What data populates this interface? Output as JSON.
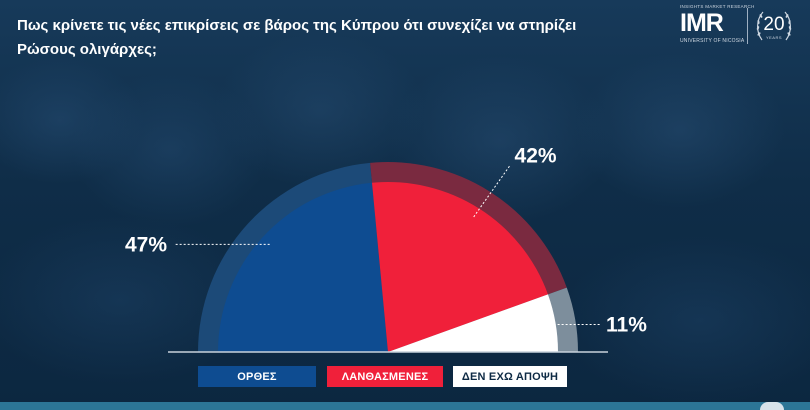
{
  "title": "Πως κρίνετε τις νέες επικρίσεις σε βάρος της Κύπρου ότι συνεχίζει να στηρίζει Ρώσους ολιγάρχες;",
  "logo": {
    "tagline": "INSIGHTS MARKET RESEARCH",
    "name": "IMR",
    "institution": "UNIVERSITY OF NICOSIA",
    "anniversary": "20",
    "anniversary_sub": "YEARS"
  },
  "legend": {
    "item1": "ΟΡΘΕΣ",
    "item2": "ΛΑΝΘΑΣΜΕΝΕΣ",
    "item3": "ΔΕΝ ΕΧΩ ΑΠΟΨΗ"
  },
  "chart_data": {
    "type": "pie",
    "subtype": "half-pie",
    "categories": [
      "ΟΡΘΕΣ",
      "ΛΑΝΘΑΣΜΕΝΕΣ",
      "ΔΕΝ ΕΧΩ ΑΠΟΨΗ"
    ],
    "values": [
      47,
      42,
      11
    ],
    "labels": [
      "47%",
      "42%",
      "11%"
    ],
    "colors": [
      "#0e4c91",
      "#f0203a",
      "#ffffff"
    ],
    "legend_position": "bottom"
  }
}
